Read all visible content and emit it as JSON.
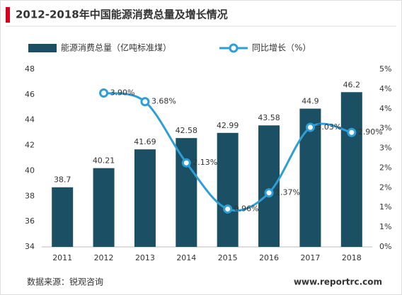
{
  "chart_data": {
    "type": "bar+line",
    "title": "2012-2018年中国能源消费总量及增长情况",
    "categories": [
      "2011",
      "2012",
      "2013",
      "2014",
      "2015",
      "2016",
      "2017",
      "2018"
    ],
    "series": [
      {
        "name": "能源消费总量（亿吨标准煤）",
        "color": "#1b4f63",
        "type": "bar",
        "axis": "y",
        "values": [
          38.7,
          40.21,
          41.69,
          42.58,
          42.99,
          43.58,
          44.9,
          46.2
        ]
      },
      {
        "name": "同比增长（%）",
        "color": "#2e9fd6",
        "type": "line",
        "axis": "y2",
        "values": [
          null,
          3.9,
          3.68,
          2.13,
          0.96,
          1.37,
          3.03,
          2.9
        ],
        "value_labels": [
          null,
          "3.90%",
          "3.68%",
          "2.13%",
          "0.96%",
          "1.37%",
          "3.03%",
          "2.90%"
        ]
      }
    ],
    "ylim": [
      34,
      48
    ],
    "yticks": [
      34,
      36,
      38,
      40,
      42,
      44,
      46,
      48
    ],
    "y2lim": [
      0,
      4.5
    ],
    "y2ticks": [
      {
        "value": 0,
        "label": "0%"
      },
      {
        "value": 0.5,
        "label": "1%"
      },
      {
        "value": 1,
        "label": "1%"
      },
      {
        "value": 1.5,
        "label": "2%"
      },
      {
        "value": 2,
        "label": "2%"
      },
      {
        "value": 2.5,
        "label": "3%"
      },
      {
        "value": 3,
        "label": "3%"
      },
      {
        "value": 3.5,
        "label": "4%"
      },
      {
        "value": 4,
        "label": "4%"
      },
      {
        "value": 4.5,
        "label": "5%"
      }
    ],
    "grid": false,
    "legend": "top",
    "source": "数据来源：锐观咨询",
    "website": "www.reportrc.com"
  }
}
